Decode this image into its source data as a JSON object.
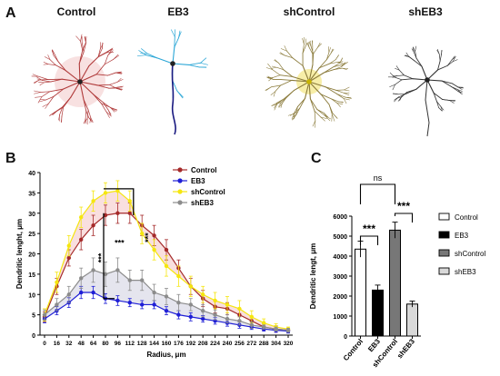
{
  "panel_a": {
    "letter": "A",
    "neurons": [
      {
        "title": "Control",
        "color": "#b03a3a",
        "shade": "#f2c9c9"
      },
      {
        "title": "EB3",
        "color": "#2aa6d6",
        "shade": "#1a1a80"
      },
      {
        "title": "shControl",
        "color": "#8a7a3a",
        "shade": "#f0e060"
      },
      {
        "title": "shEB3",
        "color": "#333333",
        "shade": "#333333"
      }
    ]
  },
  "panel_b": {
    "letter": "B"
  },
  "panel_c": {
    "letter": "C"
  },
  "chart_data": [
    {
      "type": "line",
      "title": "",
      "xlabel": "Radius, μm",
      "ylabel": "Dendritic lenght, μm",
      "x": [
        0,
        16,
        32,
        48,
        64,
        80,
        96,
        112,
        128,
        144,
        160,
        176,
        192,
        208,
        224,
        240,
        256,
        272,
        288,
        304,
        320
      ],
      "ylim": [
        0,
        40
      ],
      "yticks": [
        0,
        5,
        10,
        15,
        20,
        25,
        30,
        35,
        40
      ],
      "grid": false,
      "legend_position": "top-right",
      "series": [
        {
          "name": "Control",
          "color": "#a52a2a",
          "values": [
            4.5,
            12,
            19,
            23.5,
            27,
            29.5,
            30,
            30,
            27,
            24.5,
            21,
            16.5,
            12,
            9,
            7,
            6.5,
            5,
            3.5,
            2,
            1.5,
            1.2
          ],
          "errors": [
            1.2,
            2,
            2,
            2.5,
            2.5,
            2.5,
            2.5,
            2.5,
            2.5,
            2.5,
            2.5,
            2,
            2,
            2,
            1.5,
            1.5,
            1.5,
            1,
            0.8,
            0.8,
            0.5
          ]
        },
        {
          "name": "EB3",
          "color": "#1f1fd6",
          "values": [
            4,
            6,
            8,
            10.5,
            10.5,
            9,
            8.5,
            8,
            7.5,
            7.5,
            6,
            5,
            4.5,
            4,
            3.5,
            3,
            2.5,
            2,
            1.5,
            1.2,
            1
          ],
          "errors": [
            1,
            1,
            1.2,
            1.5,
            1.5,
            1.2,
            1.2,
            1,
            1,
            1,
            1,
            1,
            1,
            0.8,
            0.8,
            0.8,
            0.8,
            0.6,
            0.5,
            0.5,
            0.5
          ]
        },
        {
          "name": "shControl",
          "color": "#f5e60f",
          "values": [
            5,
            13,
            22,
            29,
            33,
            35,
            35.5,
            33,
            25,
            21,
            17,
            14.5,
            12,
            10,
            8.5,
            7.5,
            6.5,
            4.5,
            3,
            2,
            1.5
          ],
          "errors": [
            1.5,
            2.5,
            2.5,
            2.5,
            2.5,
            2.5,
            2.5,
            2.5,
            2.5,
            2.5,
            2.5,
            2.5,
            2.5,
            2,
            2,
            2,
            2,
            1.5,
            1,
            0.8,
            0.5
          ]
        },
        {
          "name": "shEB3",
          "color": "#8c8c8c",
          "values": [
            5,
            7.5,
            10,
            14,
            16,
            15,
            16,
            13.5,
            13.5,
            10.5,
            9.5,
            8,
            7.5,
            6,
            5,
            4,
            3.5,
            2.5,
            2,
            1.5,
            1.2
          ],
          "errors": [
            1.2,
            1.5,
            2,
            2.5,
            3,
            3,
            3,
            2.5,
            2.5,
            2,
            2,
            2,
            1.5,
            1.5,
            1.2,
            1,
            1,
            0.8,
            0.5,
            0.5,
            0.5
          ]
        }
      ],
      "annotations": [
        "***",
        "***",
        "***"
      ]
    },
    {
      "type": "bar",
      "title": "",
      "xlabel": "",
      "ylabel": "Dendritic lengt, μm",
      "categories": [
        "Control",
        "EB3",
        "shControl",
        "shEB3"
      ],
      "values": [
        4350,
        2300,
        5300,
        1600
      ],
      "errors": [
        400,
        250,
        400,
        150
      ],
      "colors": [
        "#ffffff",
        "#000000",
        "#777777",
        "#d9d9d9"
      ],
      "ylim": [
        0,
        6000
      ],
      "yticks": [
        0,
        1000,
        2000,
        3000,
        4000,
        5000,
        6000
      ],
      "legend_position": "right",
      "legend": [
        "Control",
        "EB3",
        "shControl",
        "shEB3"
      ],
      "significance": [
        {
          "label": "ns",
          "from": "Control",
          "to": "shControl"
        },
        {
          "label": "***",
          "from": "Control",
          "to": "EB3"
        },
        {
          "label": "***",
          "from": "shControl",
          "to": "shEB3"
        }
      ]
    }
  ]
}
